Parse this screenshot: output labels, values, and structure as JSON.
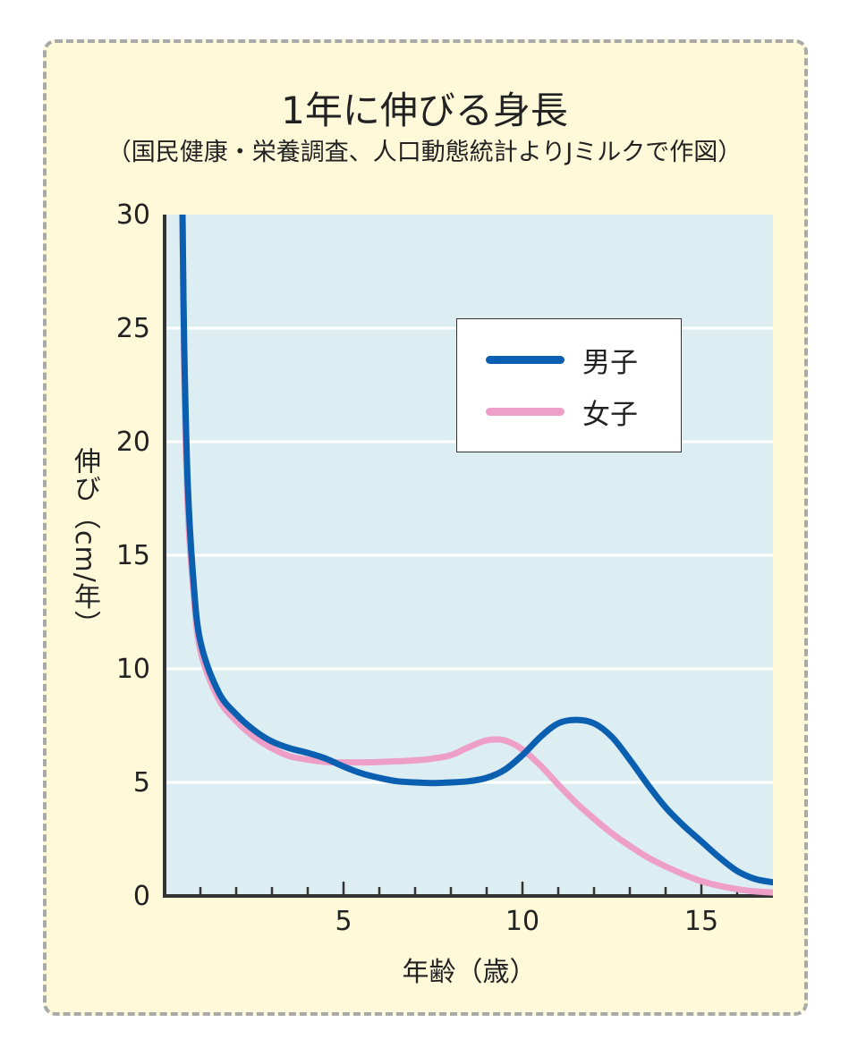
{
  "title": "1年に伸びる身長",
  "subtitle": "（国民健康・栄養調査、人口動態統計よりJミルクで作図）",
  "colors": {
    "card_background": "#fdf9d9",
    "plot_background": "#ddeef2",
    "grid": "#ffffff",
    "axis": "#333333",
    "boys": "#0b5fb0",
    "girls": "#ee9fc7"
  },
  "chart_data": {
    "type": "line",
    "title": "1年に伸びる身長",
    "subtitle": "（国民健康・栄養調査、人口動態統計よりJミルクで作図）",
    "xlabel": "年齢（歳）",
    "ylabel": "伸び（cm/年）",
    "xlim": [
      0,
      17
    ],
    "ylim": [
      0,
      30
    ],
    "x_ticks": [
      5,
      10,
      15
    ],
    "y_ticks": [
      0,
      5,
      10,
      15,
      20,
      25,
      30
    ],
    "grid": "horizontal",
    "legend_position": "top-right",
    "series": [
      {
        "name": "男子",
        "color": "#0b5fb0",
        "points": [
          [
            0.5,
            30
          ],
          [
            0.55,
            24
          ],
          [
            0.65,
            18
          ],
          [
            0.8,
            14
          ],
          [
            1.0,
            11.2
          ],
          [
            1.5,
            9.0
          ],
          [
            2,
            8.0
          ],
          [
            2.5,
            7.3
          ],
          [
            3,
            6.8
          ],
          [
            3.5,
            6.5
          ],
          [
            4,
            6.3
          ],
          [
            4.5,
            6.05
          ],
          [
            5,
            5.7
          ],
          [
            5.5,
            5.4
          ],
          [
            6,
            5.2
          ],
          [
            6.5,
            5.05
          ],
          [
            7,
            5.0
          ],
          [
            7.5,
            4.97
          ],
          [
            8,
            5.0
          ],
          [
            8.5,
            5.05
          ],
          [
            9,
            5.2
          ],
          [
            9.5,
            5.55
          ],
          [
            10,
            6.2
          ],
          [
            10.5,
            7.0
          ],
          [
            11,
            7.6
          ],
          [
            11.5,
            7.75
          ],
          [
            12,
            7.6
          ],
          [
            12.5,
            7.0
          ],
          [
            13,
            6.0
          ],
          [
            13.5,
            4.9
          ],
          [
            14,
            3.9
          ],
          [
            14.5,
            3.1
          ],
          [
            15,
            2.4
          ],
          [
            15.5,
            1.7
          ],
          [
            16,
            1.1
          ],
          [
            16.5,
            0.75
          ],
          [
            17,
            0.6
          ]
        ]
      },
      {
        "name": "女子",
        "color": "#ee9fc7",
        "points": [
          [
            0.5,
            30
          ],
          [
            0.55,
            23
          ],
          [
            0.65,
            17
          ],
          [
            0.8,
            13.5
          ],
          [
            1.0,
            10.8
          ],
          [
            1.5,
            8.7
          ],
          [
            2,
            7.7
          ],
          [
            2.5,
            7.0
          ],
          [
            3,
            6.5
          ],
          [
            3.5,
            6.15
          ],
          [
            4,
            6.0
          ],
          [
            4.5,
            5.9
          ],
          [
            5,
            5.88
          ],
          [
            5.5,
            5.88
          ],
          [
            6,
            5.9
          ],
          [
            6.5,
            5.93
          ],
          [
            7,
            5.97
          ],
          [
            7.5,
            6.05
          ],
          [
            8,
            6.2
          ],
          [
            8.5,
            6.55
          ],
          [
            9,
            6.85
          ],
          [
            9.5,
            6.85
          ],
          [
            10,
            6.45
          ],
          [
            10.5,
            5.75
          ],
          [
            11,
            4.9
          ],
          [
            11.5,
            4.1
          ],
          [
            12,
            3.4
          ],
          [
            12.5,
            2.75
          ],
          [
            13,
            2.2
          ],
          [
            13.5,
            1.7
          ],
          [
            14,
            1.3
          ],
          [
            14.5,
            0.95
          ],
          [
            15,
            0.65
          ],
          [
            15.5,
            0.45
          ],
          [
            16,
            0.3
          ],
          [
            16.5,
            0.2
          ],
          [
            17,
            0.15
          ]
        ]
      }
    ]
  }
}
